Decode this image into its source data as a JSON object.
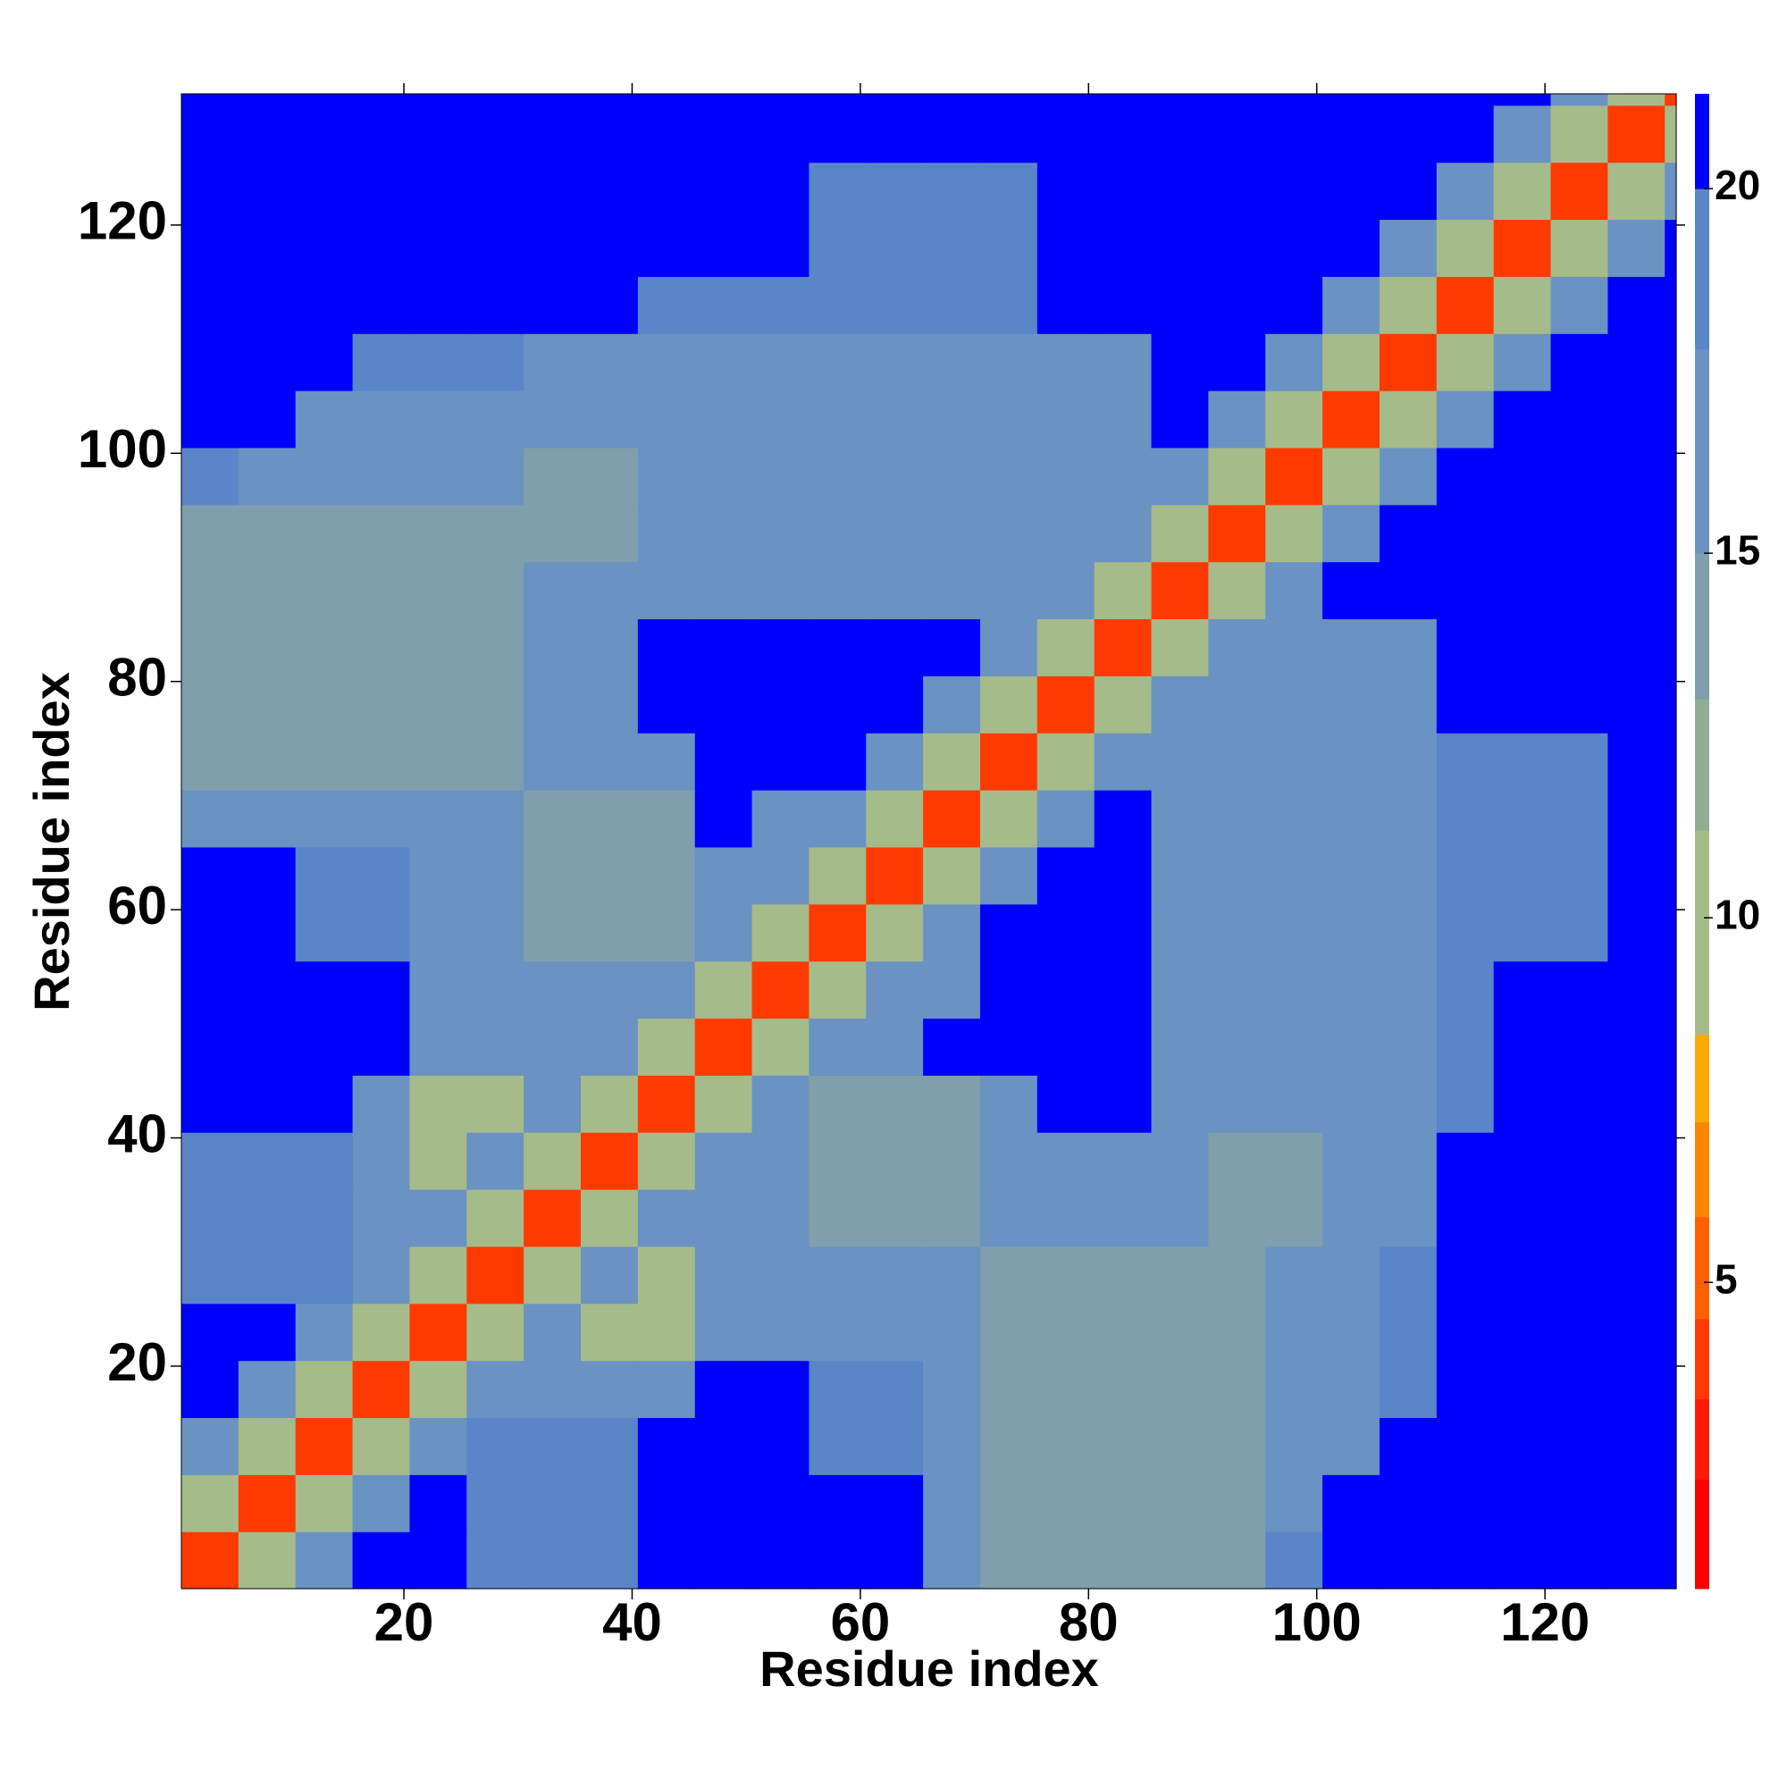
{
  "chart_data": {
    "type": "heatmap",
    "x_label": "Residue index",
    "y_label": "Residue index",
    "xlim": [
      0.5,
      131.5
    ],
    "ylim": [
      0.5,
      131.5
    ],
    "xticks": [
      20,
      40,
      60,
      80,
      100,
      120
    ],
    "yticks": [
      20,
      40,
      60,
      80,
      100,
      120
    ],
    "x_edges": [
      0.5,
      5.5,
      10.5,
      15.5,
      20.5,
      25.5,
      30.5,
      35.5,
      40.5,
      45.5,
      50.5,
      55.5,
      60.5,
      65.5,
      70.5,
      75.5,
      80.5,
      85.5,
      90.5,
      95.5,
      100.5,
      105.5,
      110.5,
      115.5,
      120.5,
      125.5,
      130.5,
      131.5
    ],
    "y_edges": [
      0.5,
      5.5,
      10.5,
      15.5,
      20.5,
      25.5,
      30.5,
      35.5,
      40.5,
      45.5,
      50.5,
      55.5,
      60.5,
      65.5,
      70.5,
      75.5,
      80.5,
      85.5,
      90.5,
      95.5,
      100.5,
      105.5,
      110.5,
      115.5,
      120.5,
      125.5,
      130.5,
      131.5
    ],
    "z": [
      [
        4,
        10,
        16,
        21,
        21,
        18,
        18,
        18,
        21,
        21,
        21,
        21,
        21,
        17,
        14,
        14,
        14,
        14,
        14,
        18,
        21,
        21,
        21,
        21,
        21,
        21,
        21
      ],
      [
        10,
        4,
        10,
        16,
        21,
        18,
        18,
        18,
        21,
        21,
        21,
        21,
        21,
        17,
        14,
        14,
        14,
        14,
        14,
        15,
        21,
        21,
        21,
        21,
        21,
        21,
        21
      ],
      [
        16,
        10,
        4,
        10,
        16,
        18,
        18,
        18,
        21,
        21,
        21,
        18,
        18,
        17,
        14,
        14,
        14,
        14,
        14,
        15,
        17,
        21,
        21,
        21,
        21,
        21,
        21
      ],
      [
        21,
        16,
        10,
        4,
        10,
        16,
        17,
        17,
        17,
        21,
        21,
        18,
        18,
        17,
        14,
        14,
        14,
        14,
        14,
        15,
        17,
        19,
        21,
        21,
        21,
        21,
        21
      ],
      [
        21,
        21,
        16,
        10,
        4,
        10,
        16,
        9,
        9,
        15,
        15,
        15,
        15,
        17,
        14,
        14,
        14,
        14,
        14,
        15,
        17,
        19,
        21,
        21,
        21,
        21,
        21
      ],
      [
        18,
        18,
        18,
        16,
        10,
        4,
        10,
        16,
        9,
        15,
        15,
        15,
        15,
        17,
        14,
        14,
        14,
        14,
        14,
        15,
        17,
        19,
        21,
        21,
        21,
        21,
        21
      ],
      [
        18,
        18,
        18,
        17,
        16,
        10,
        4,
        10,
        16,
        15,
        15,
        14,
        14,
        14,
        15,
        15,
        15,
        15,
        13,
        13,
        15,
        15,
        21,
        21,
        21,
        21,
        21
      ],
      [
        18,
        18,
        18,
        17,
        9,
        16,
        10,
        4,
        10,
        16,
        15,
        14,
        14,
        14,
        15,
        15,
        15,
        15,
        13,
        13,
        15,
        15,
        21,
        21,
        21,
        21,
        21
      ],
      [
        21,
        21,
        21,
        17,
        9,
        9,
        16,
        10,
        4,
        10,
        16,
        14,
        14,
        14,
        16,
        21,
        21,
        15,
        15,
        15,
        15,
        15,
        19,
        21,
        21,
        21,
        21
      ],
      [
        21,
        21,
        21,
        21,
        15,
        15,
        15,
        16,
        10,
        4,
        10,
        16,
        15,
        21,
        21,
        21,
        21,
        15,
        15,
        15,
        15,
        15,
        19,
        21,
        21,
        21,
        21
      ],
      [
        21,
        21,
        21,
        21,
        15,
        15,
        15,
        15,
        16,
        10,
        4,
        10,
        16,
        15,
        21,
        21,
        21,
        15,
        15,
        15,
        15,
        15,
        19,
        21,
        21,
        21,
        21
      ],
      [
        21,
        21,
        18,
        18,
        15,
        15,
        14,
        14,
        14,
        16,
        10,
        4,
        10,
        16,
        21,
        21,
        21,
        15,
        15,
        15,
        15,
        15,
        19,
        19,
        19,
        21,
        21
      ],
      [
        21,
        21,
        18,
        18,
        15,
        15,
        14,
        14,
        14,
        15,
        16,
        10,
        4,
        10,
        16,
        21,
        21,
        15,
        15,
        15,
        15,
        15,
        19,
        19,
        19,
        21,
        21
      ],
      [
        17,
        17,
        17,
        17,
        17,
        17,
        14,
        14,
        14,
        21,
        15,
        16,
        10,
        4,
        10,
        16,
        21,
        15,
        15,
        15,
        15,
        15,
        19,
        19,
        19,
        21,
        21
      ],
      [
        14,
        14,
        14,
        14,
        14,
        14,
        15,
        15,
        16,
        21,
        21,
        21,
        16,
        10,
        4,
        10,
        16,
        15,
        15,
        15,
        15,
        15,
        19,
        19,
        19,
        21,
        21
      ],
      [
        14,
        14,
        14,
        14,
        14,
        14,
        15,
        15,
        21,
        21,
        21,
        21,
        21,
        16,
        10,
        4,
        10,
        16,
        15,
        15,
        15,
        15,
        21,
        21,
        21,
        21,
        21
      ],
      [
        14,
        14,
        14,
        14,
        14,
        14,
        15,
        15,
        21,
        21,
        21,
        21,
        21,
        21,
        16,
        10,
        4,
        10,
        16,
        15,
        15,
        15,
        21,
        21,
        21,
        21,
        21
      ],
      [
        14,
        14,
        14,
        14,
        14,
        14,
        15,
        15,
        15,
        15,
        15,
        15,
        15,
        15,
        15,
        16,
        10,
        4,
        10,
        16,
        21,
        21,
        21,
        21,
        21,
        21,
        21
      ],
      [
        14,
        14,
        14,
        14,
        14,
        14,
        13,
        13,
        15,
        15,
        15,
        15,
        15,
        15,
        15,
        15,
        16,
        10,
        4,
        10,
        16,
        21,
        21,
        21,
        21,
        21,
        21
      ],
      [
        18,
        15,
        15,
        15,
        15,
        15,
        13,
        13,
        15,
        15,
        15,
        15,
        15,
        15,
        15,
        15,
        15,
        16,
        10,
        4,
        10,
        16,
        21,
        21,
        21,
        21,
        21
      ],
      [
        21,
        21,
        17,
        17,
        17,
        17,
        15,
        15,
        15,
        15,
        15,
        15,
        15,
        15,
        15,
        15,
        15,
        21,
        16,
        10,
        4,
        10,
        16,
        21,
        21,
        21,
        21
      ],
      [
        21,
        21,
        21,
        19,
        19,
        19,
        15,
        15,
        15,
        15,
        15,
        15,
        15,
        15,
        15,
        15,
        15,
        21,
        21,
        16,
        10,
        4,
        10,
        16,
        21,
        21,
        21
      ],
      [
        21,
        21,
        21,
        21,
        21,
        21,
        21,
        21,
        19,
        19,
        19,
        19,
        19,
        19,
        19,
        21,
        21,
        21,
        21,
        21,
        16,
        10,
        4,
        10,
        16,
        21,
        21
      ],
      [
        21,
        21,
        21,
        21,
        21,
        21,
        21,
        21,
        21,
        21,
        21,
        19,
        19,
        19,
        19,
        21,
        21,
        21,
        21,
        21,
        21,
        16,
        10,
        4,
        10,
        16,
        21
      ],
      [
        21,
        21,
        21,
        21,
        21,
        21,
        21,
        21,
        21,
        21,
        21,
        19,
        19,
        19,
        19,
        21,
        21,
        21,
        21,
        21,
        21,
        21,
        16,
        10,
        4,
        10,
        16
      ],
      [
        21,
        21,
        21,
        21,
        21,
        21,
        21,
        21,
        21,
        21,
        21,
        21,
        21,
        21,
        21,
        21,
        21,
        21,
        21,
        21,
        21,
        21,
        21,
        16,
        10,
        4,
        10
      ],
      [
        21,
        21,
        21,
        21,
        21,
        21,
        21,
        21,
        21,
        21,
        21,
        21,
        21,
        21,
        21,
        21,
        21,
        21,
        21,
        21,
        21,
        21,
        21,
        21,
        16,
        10,
        4
      ]
    ],
    "clim": [
      0.8,
      21.3
    ],
    "cticks": [
      5,
      10,
      15,
      20
    ],
    "levels": [
      0.8,
      2.3,
      3.4,
      4.5,
      5.9,
      7.2,
      8.4,
      11.2,
      13,
      15,
      17.8,
      20,
      21.3
    ],
    "colors": [
      "#ff0000",
      "#ff1a00",
      "#ff3a00",
      "#ff6000",
      "#ff8400",
      "#ffa800",
      "#a6bb8a",
      "#93ad94",
      "#7f9fac",
      "#6a92c2",
      "#5a85c8",
      "#0000ff"
    ]
  }
}
